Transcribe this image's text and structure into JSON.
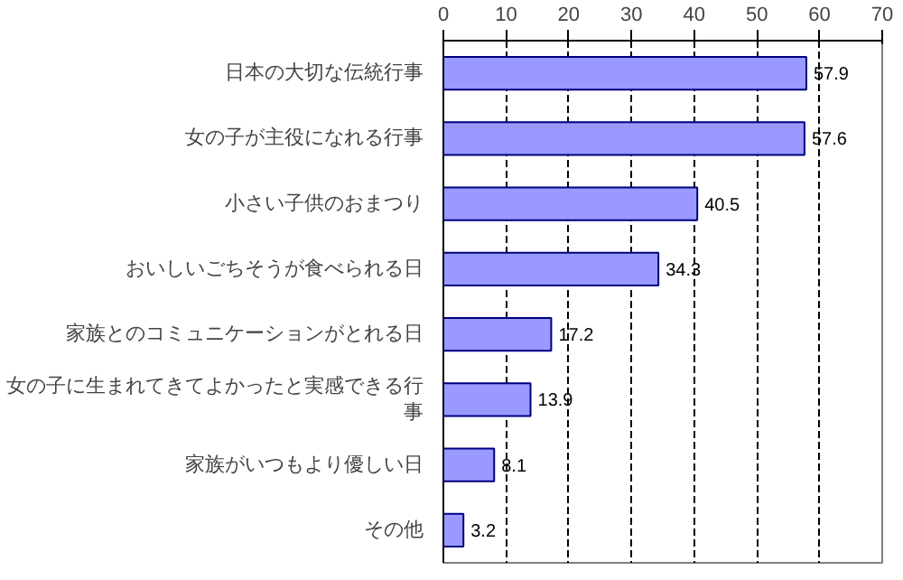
{
  "chart_data": {
    "type": "bar",
    "orientation": "horizontal",
    "categories": [
      "日本の大切な伝統行事",
      "女の子が主役になれる行事",
      "小さい子供のおまつり",
      "おいしいごちそうが食べられる日",
      "家族とのコミュニケーションがとれる日",
      "女の子に生まれてきてよかったと実感できる行事",
      "家族がいつもより優しい日",
      "その他"
    ],
    "values": [
      57.9,
      57.6,
      40.5,
      34.3,
      17.2,
      13.9,
      8.1,
      3.2
    ],
    "color": "#9999ff",
    "xlim": [
      0,
      70
    ],
    "xticks": [
      0,
      10,
      20,
      30,
      40,
      50,
      60,
      70
    ],
    "grid": "x",
    "data_labels": true
  }
}
